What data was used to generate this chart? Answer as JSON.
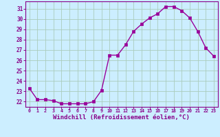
{
  "x": [
    0,
    1,
    2,
    3,
    4,
    5,
    6,
    7,
    8,
    9,
    10,
    11,
    12,
    13,
    14,
    15,
    16,
    17,
    18,
    19,
    20,
    21,
    22,
    23
  ],
  "y": [
    23.3,
    22.2,
    22.2,
    22.1,
    21.8,
    21.8,
    21.8,
    21.8,
    22.0,
    23.1,
    26.5,
    26.5,
    27.5,
    28.8,
    29.5,
    30.1,
    30.5,
    31.2,
    31.2,
    30.8,
    30.1,
    28.8,
    27.2,
    26.4
  ],
  "line_color": "#990099",
  "marker": "s",
  "markersize": 2.5,
  "linewidth": 1.0,
  "xlabel": "Windchill (Refroidissement éolien,°C)",
  "xlabel_fontsize": 6.5,
  "bg_color": "#cceeff",
  "grid_color": "#aaccbb",
  "tick_label_color": "#880088",
  "ylim": [
    21.5,
    31.7
  ],
  "yticks": [
    22,
    23,
    24,
    25,
    26,
    27,
    28,
    29,
    30,
    31
  ],
  "xlim": [
    -0.5,
    23.5
  ]
}
